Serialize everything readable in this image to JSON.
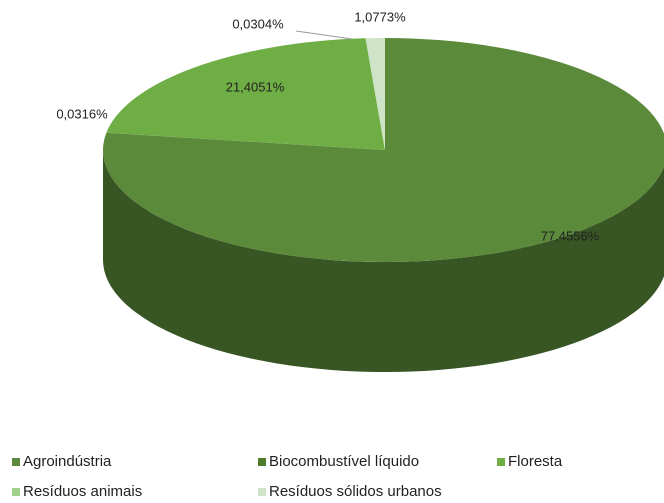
{
  "chart_data": {
    "type": "pie3d",
    "categories": [
      "Agroindústria",
      "Biocombustível líquido",
      "Floresta",
      "Resíduos animais",
      "Resíduos sólidos urbanos"
    ],
    "values": [
      77.4556,
      0.0316,
      21.4051,
      0.0304,
      1.0773
    ],
    "value_labels": [
      "77,4556%",
      "0,0316%",
      "21,4051%",
      "0,0304%",
      "1,0773%"
    ],
    "colors": [
      "#5a8a3a",
      "#4b7d2c",
      "#6fae44",
      "#a3d18a",
      "#cfe3c6"
    ],
    "legend": "bottom"
  }
}
